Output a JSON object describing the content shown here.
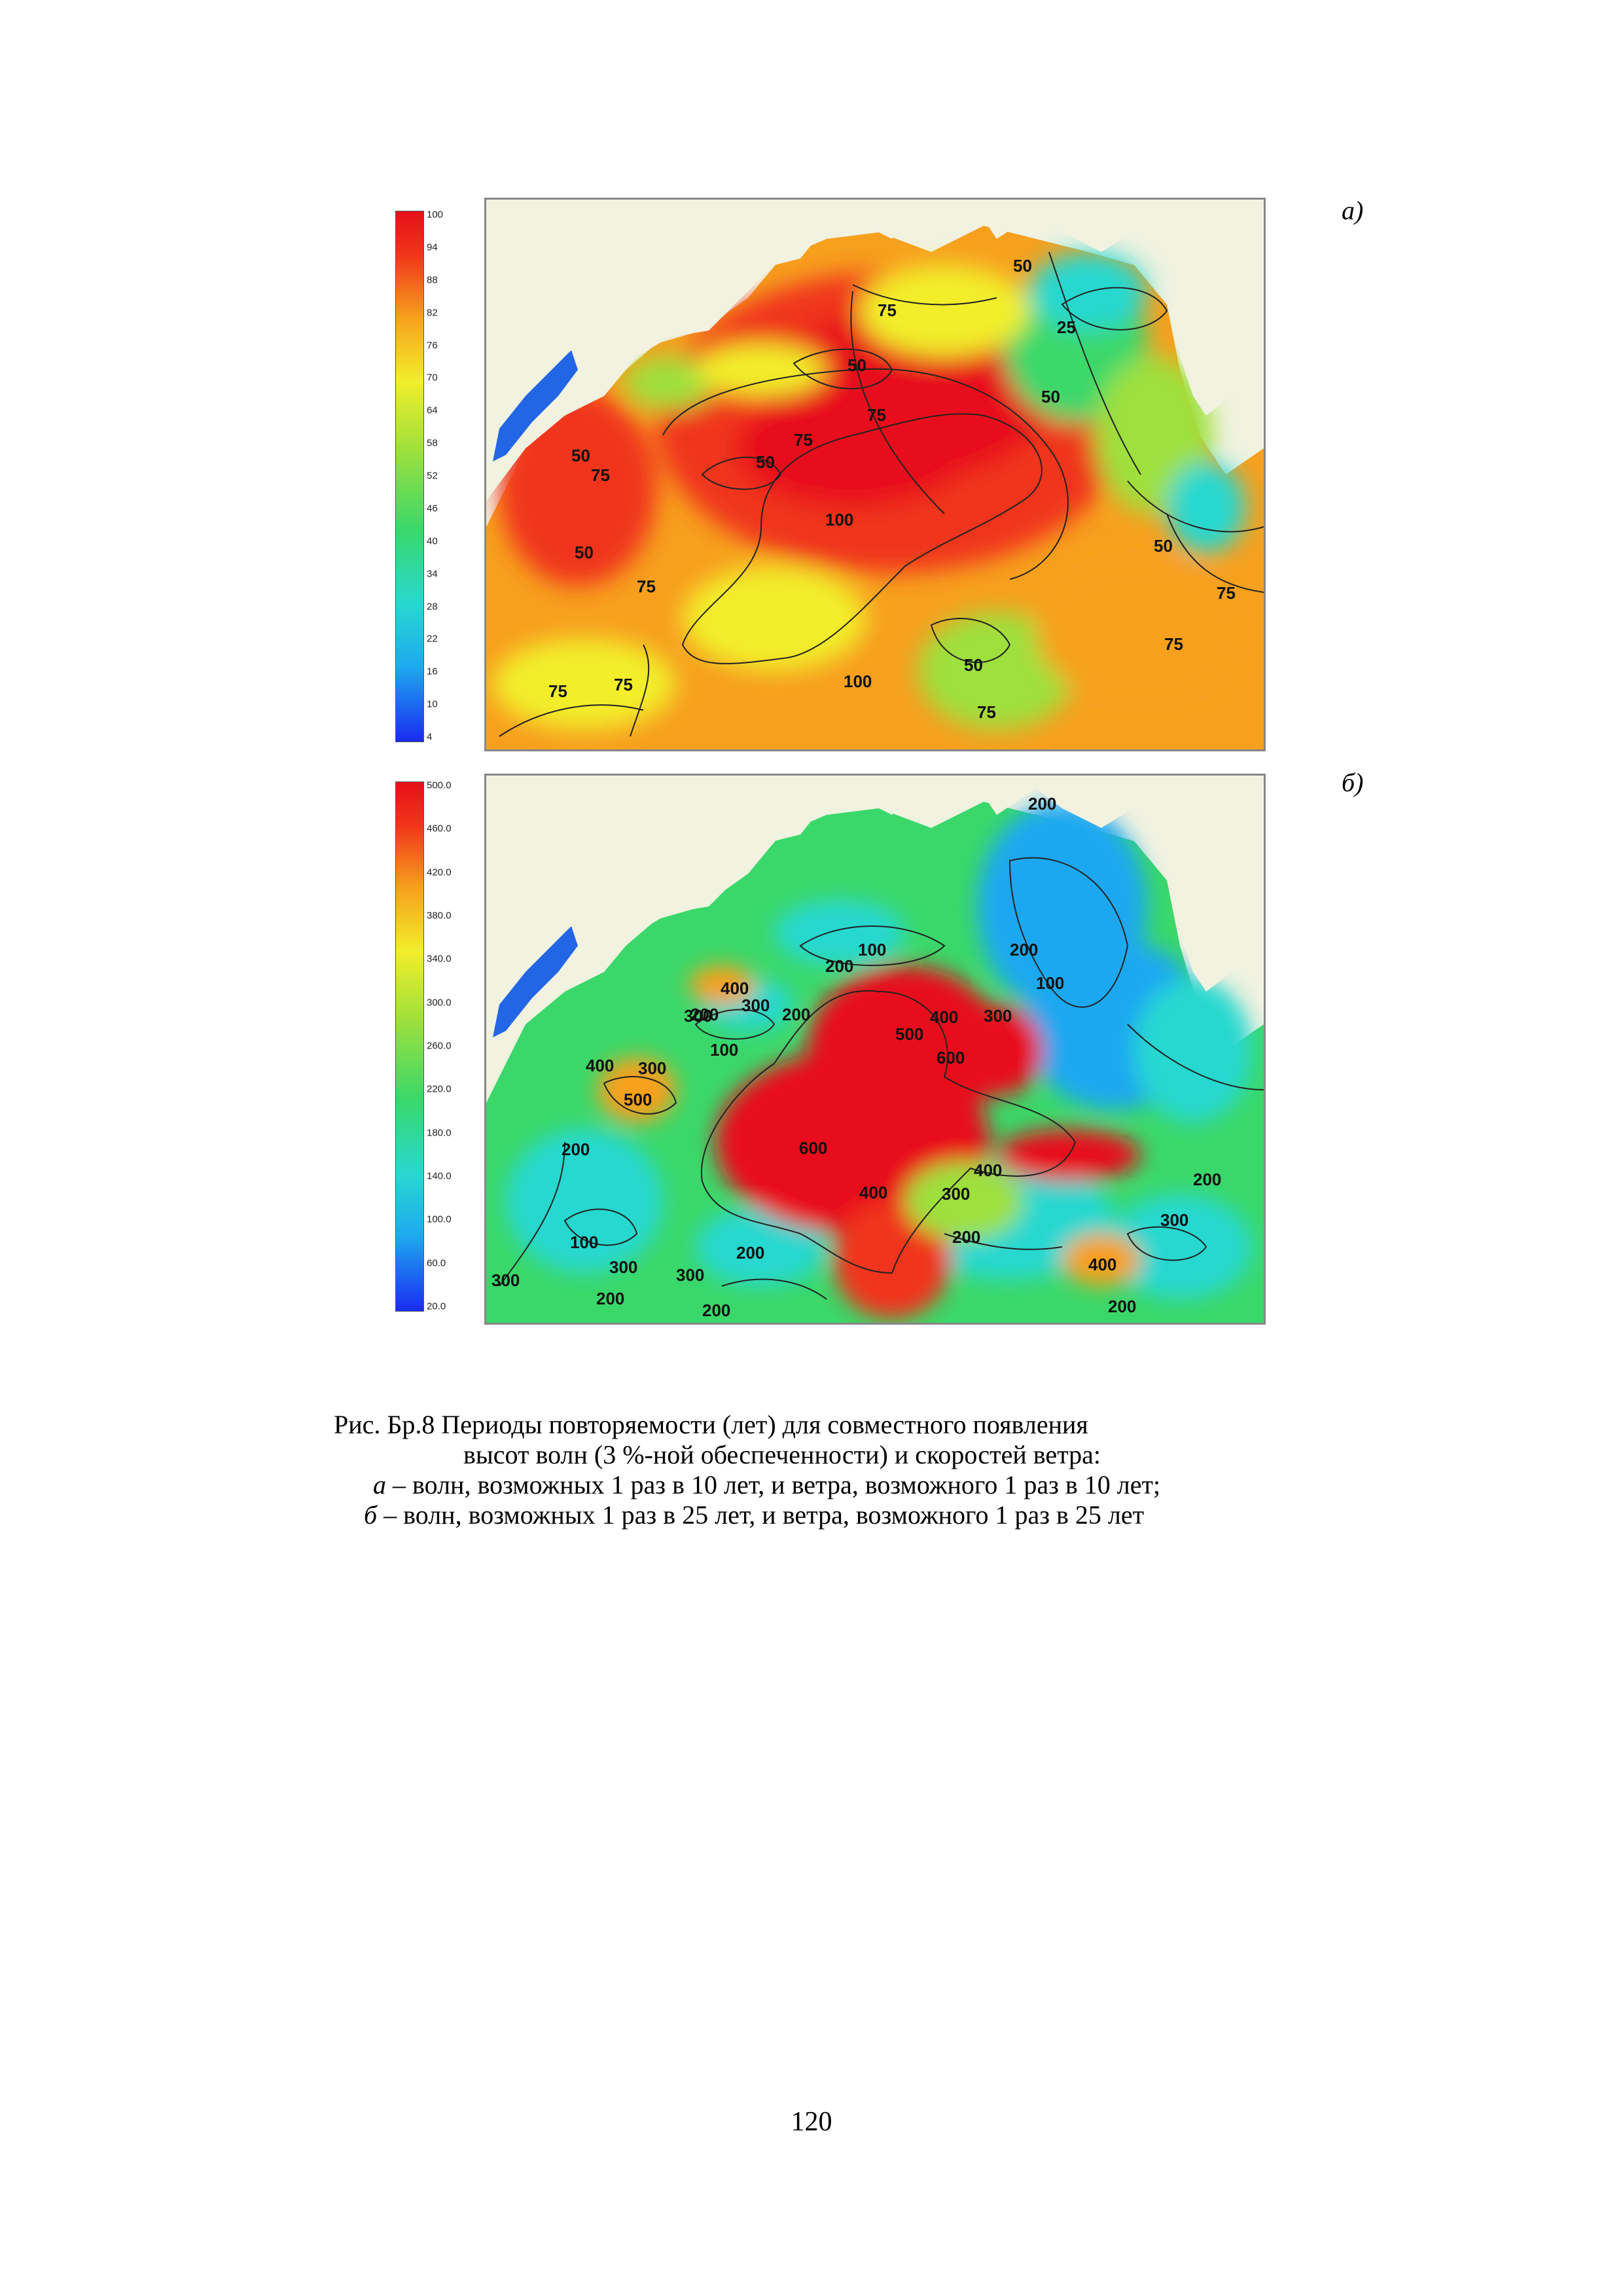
{
  "panels": [
    {
      "label": "а)",
      "colorbar": {
        "ticks": [
          "100",
          "94",
          "88",
          "82",
          "76",
          "70",
          "64",
          "58",
          "52",
          "46",
          "40",
          "34",
          "28",
          "22",
          "16",
          "10",
          "4"
        ],
        "range": [
          0,
          100
        ],
        "colors": [
          "#1a2cf0",
          "#1ea8f0",
          "#28d8d0",
          "#3ad86a",
          "#9ee03c",
          "#f2ee2a",
          "#f7a01e",
          "#f0341a",
          "#e8101a"
        ]
      },
      "contour_labels": [
        "50",
        "75",
        "25",
        "50",
        "75",
        "50",
        "75",
        "50",
        "50",
        "75",
        "100",
        "50",
        "50",
        "75",
        "75",
        "75",
        "75",
        "100",
        "50",
        "75",
        "75"
      ],
      "dominant_color": "#ea1c14"
    },
    {
      "label": "б)",
      "colorbar": {
        "ticks": [
          "500.0",
          "460.0",
          "420.0",
          "380.0",
          "340.0",
          "300.0",
          "260.0",
          "220.0",
          "180.0",
          "140.0",
          "100.0",
          "60.0",
          "20.0"
        ],
        "range": [
          0,
          500
        ],
        "colors": [
          "#1a2cf0",
          "#1ea8f0",
          "#28d8d0",
          "#3ad86a",
          "#9ee03c",
          "#f2ee2a",
          "#f7a01e",
          "#f0341a",
          "#e8101a"
        ]
      },
      "contour_labels": [
        "200",
        "100",
        "200",
        "200",
        "100",
        "400",
        "300",
        "200",
        "200",
        "400",
        "300",
        "300",
        "100",
        "500",
        "400",
        "300",
        "600",
        "500",
        "200",
        "600",
        "400",
        "400",
        "300",
        "200",
        "100",
        "300",
        "200",
        "300",
        "200",
        "400",
        "300",
        "300",
        "200",
        "200",
        "200"
      ],
      "dominant_color": "#3ad86a"
    }
  ],
  "caption": {
    "line1": "Рис. Бр.8 Периоды повторяемости (лет) для совместного появления",
    "line2": "высот волн (3 %-ной обеспеченности) и скоростей ветра:",
    "line3_letter": "а",
    "line3_rest": " – волн, возможных 1 раз в 10 лет, и ветра, возможного 1 раз в 10 лет;",
    "line4_letter": "б",
    "line4_rest": " – волн, возможных 1 раз в 25 лет, и ветра, возможного 1 раз в 25 лет"
  },
  "page_number": "120"
}
